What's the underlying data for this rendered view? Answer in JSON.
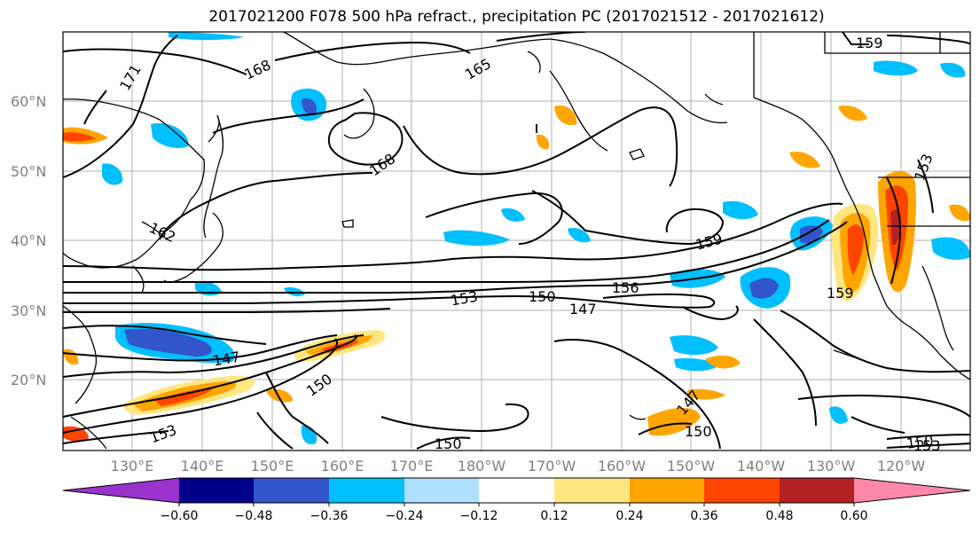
{
  "title": "2017021200 F078 500 hPa refract., precipitation PC (2017021512 - 2017021612)",
  "lat_labels": [
    "60°N",
    "50°N",
    "40°N",
    "30°N",
    "20°N"
  ],
  "lon_labels": [
    "130°E",
    "140°E",
    "150°E",
    "160°E",
    "170°E",
    "180°W",
    "170°W",
    "160°W",
    "150°W",
    "140°W",
    "130°W",
    "120°W"
  ],
  "contour_labels": [
    "171",
    "168",
    "165",
    "159",
    "168",
    "162",
    "153",
    "150",
    "156",
    "147",
    "159",
    "159",
    "147",
    "150",
    "153",
    "153",
    "150",
    "147",
    "150",
    "150",
    "153"
  ],
  "colorbar": {
    "ticks": [
      "−0.60",
      "−0.48",
      "−0.36",
      "−0.24",
      "−0.12",
      "0.12",
      "0.24",
      "0.36",
      "0.48",
      "0.60"
    ],
    "colors": [
      "#9933cc",
      "#00008b",
      "#3355cc",
      "#00bfff",
      "#b0e0ff",
      "#ffffff",
      "#ffe680",
      "#ffa500",
      "#ff4500",
      "#b22222",
      "#ff88aa"
    ]
  }
}
